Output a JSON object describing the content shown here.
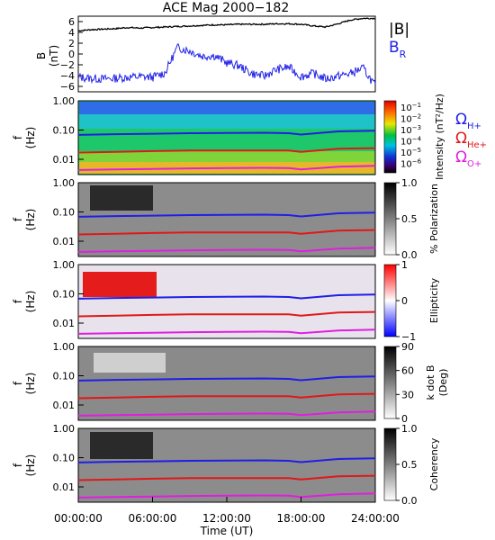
{
  "title": "ACE Mag 2000−182",
  "x_axis": {
    "label": "Time (UT)",
    "ticks": [
      "00:00:00",
      "06:00:00",
      "12:00:00",
      "18:00:00",
      "24:00:00"
    ],
    "tick_hours": [
      0,
      6,
      12,
      18,
      24
    ]
  },
  "colors": {
    "b_total": "#000000",
    "b_radial": "#1f1fe6",
    "h_plus": "#1f1fe6",
    "he_plus": "#e01818",
    "o_plus": "#e01ee0"
  },
  "legend": {
    "b_total": "|B|",
    "b_radial_main": "B",
    "b_radial_sub": "R",
    "omega": "Ω",
    "h_plus_sub": "H+",
    "he_plus_sub": "He+",
    "o_plus_sub": "O+"
  },
  "panels": {
    "b_field": {
      "ylabel_1": "B",
      "ylabel_2": "(nT)",
      "yticks": [
        "6",
        "4",
        "2",
        "0",
        "−2",
        "−4",
        "−6"
      ],
      "ylim": [
        -7,
        7
      ]
    },
    "freq_ylabel_1": "f",
    "freq_ylabel_2": "(Hz)",
    "freq_yticks": [
      "1.00",
      "0.10",
      "0.01"
    ],
    "intensity": {
      "cbar_label": "Intensity (nT²/Hz)",
      "cbar_ticks_base": [
        "10",
        "10",
        "10",
        "10",
        "10",
        "10"
      ],
      "cbar_ticks_exp": [
        "−1",
        "−2",
        "−3",
        "−4",
        "−5",
        "−6"
      ]
    },
    "polarization": {
      "cbar_label": "% Polarization",
      "cbar_ticks": [
        "1.0",
        "0.5",
        "0.0"
      ]
    },
    "ellipticity": {
      "cbar_label": "Ellipticity",
      "cbar_ticks": [
        "1",
        "0",
        "−1"
      ]
    },
    "kdotb": {
      "cbar_label_1": "k dot B",
      "cbar_label_2": "(Deg)",
      "cbar_ticks": [
        "90",
        "60",
        "30",
        "0"
      ]
    },
    "coherency": {
      "cbar_label": "Coherency",
      "cbar_ticks": [
        "1.0",
        "0.5",
        "0.0"
      ]
    }
  },
  "chart_data": [
    {
      "type": "line",
      "title": "ACE Mag 2000−182",
      "xlabel": "Time (UT)",
      "ylabel": "B (nT)",
      "ylim": [
        -7,
        7
      ],
      "xlim": [
        0,
        24
      ],
      "x": [
        0,
        1,
        2,
        3,
        4,
        5,
        6,
        7,
        8,
        9,
        10,
        11,
        12,
        13,
        14,
        15,
        16,
        17,
        18,
        19,
        20,
        21,
        22,
        23,
        24
      ],
      "series": [
        {
          "name": "|B|",
          "values": [
            4.3,
            4.5,
            4.6,
            4.7,
            4.9,
            4.8,
            4.9,
            5.0,
            5.1,
            5.2,
            5.3,
            5.4,
            5.4,
            5.5,
            5.5,
            5.5,
            5.6,
            5.6,
            5.5,
            5.2,
            5.0,
            5.6,
            6.3,
            6.6,
            6.6
          ]
        },
        {
          "name": "B_R",
          "values": [
            -4.3,
            -4.5,
            -4.6,
            -4.5,
            -4.3,
            -4.2,
            -4.3,
            -3.5,
            1.2,
            0.6,
            -0.4,
            -0.3,
            -1.6,
            -2.2,
            -3.6,
            -4.1,
            -2.9,
            -2.4,
            -4.2,
            -3.6,
            -4.6,
            -4.1,
            -3.6,
            -2.6,
            -5.9
          ]
        }
      ]
    },
    {
      "type": "heatmap",
      "ylabel": "f (Hz)",
      "ylim": [
        0.003,
        1.0
      ],
      "xlim": [
        0,
        24
      ],
      "note_series": "gyrofrequency lines, identical in each spectrogram panel",
      "x": [
        0,
        3,
        6,
        9,
        12,
        15,
        17,
        18,
        21,
        24
      ],
      "series": [
        {
          "name": "ΩH+",
          "values": [
            0.068,
            0.072,
            0.075,
            0.078,
            0.08,
            0.081,
            0.078,
            0.07,
            0.09,
            0.095
          ]
        },
        {
          "name": "ΩHe+",
          "values": [
            0.017,
            0.018,
            0.019,
            0.02,
            0.02,
            0.02,
            0.02,
            0.018,
            0.023,
            0.024
          ]
        },
        {
          "name": "ΩO+",
          "values": [
            0.0043,
            0.0045,
            0.0047,
            0.0049,
            0.005,
            0.0051,
            0.005,
            0.0045,
            0.0056,
            0.006
          ]
        }
      ]
    }
  ]
}
